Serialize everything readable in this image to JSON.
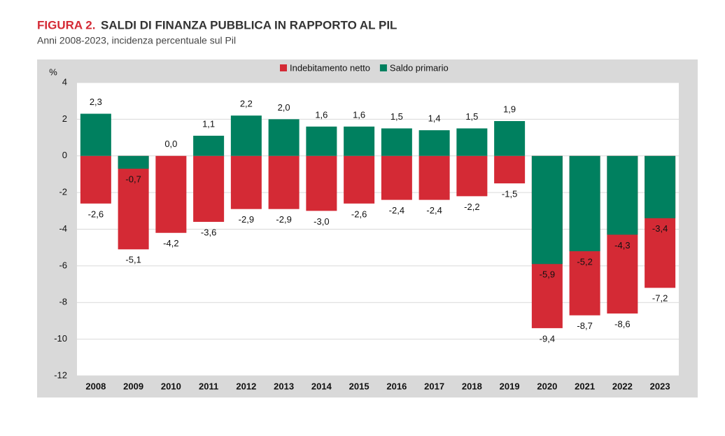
{
  "chart_data": {
    "type": "overlap-bar",
    "figure_label": "FIGURA 2.",
    "title": "SALDI DI FINANZA PUBBLICA IN RAPPORTO AL PIL",
    "subtitle": "Anni 2008-2023, incidenza percentuale sul Pil",
    "y_label": "%",
    "categories": [
      "2008",
      "2009",
      "2010",
      "2011",
      "2012",
      "2013",
      "2014",
      "2015",
      "2016",
      "2017",
      "2018",
      "2019",
      "2020",
      "2021",
      "2022",
      "2023"
    ],
    "series": [
      {
        "name": "Indebitamento netto",
        "color": "#d42a35",
        "values": [
          -2.6,
          -5.1,
          -4.2,
          -3.6,
          -2.9,
          -2.9,
          -3.0,
          -2.6,
          -2.4,
          -2.4,
          -2.2,
          -1.5,
          -9.4,
          -8.7,
          -8.6,
          -7.2
        ],
        "value_labels": [
          "-2,6",
          "-5,1",
          "-4,2",
          "-3,6",
          "-2,9",
          "-2,9",
          "-3,0",
          "-2,6",
          "-2,4",
          "-2,4",
          "-2,2",
          "-1,5",
          "-9,4",
          "-8,7",
          "-8,6",
          "-7,2"
        ]
      },
      {
        "name": "Saldo primario",
        "color": "#00805f",
        "values": [
          2.3,
          -0.7,
          0.0,
          1.1,
          2.2,
          2.0,
          1.6,
          1.6,
          1.5,
          1.4,
          1.5,
          1.9,
          -5.9,
          -5.2,
          -4.3,
          -3.4
        ],
        "value_labels": [
          "2,3",
          "-0,7",
          "0,0",
          "1,1",
          "2,2",
          "2,0",
          "1,6",
          "1,6",
          "1,5",
          "1,4",
          "1,5",
          "1,9",
          "-5,9",
          "-5,2",
          "-4,3",
          "-3,4"
        ]
      }
    ],
    "ylim": [
      -12,
      4
    ],
    "yticks": [
      4,
      2,
      0,
      -2,
      -4,
      -6,
      -8,
      -10,
      -12
    ],
    "grid": true
  }
}
